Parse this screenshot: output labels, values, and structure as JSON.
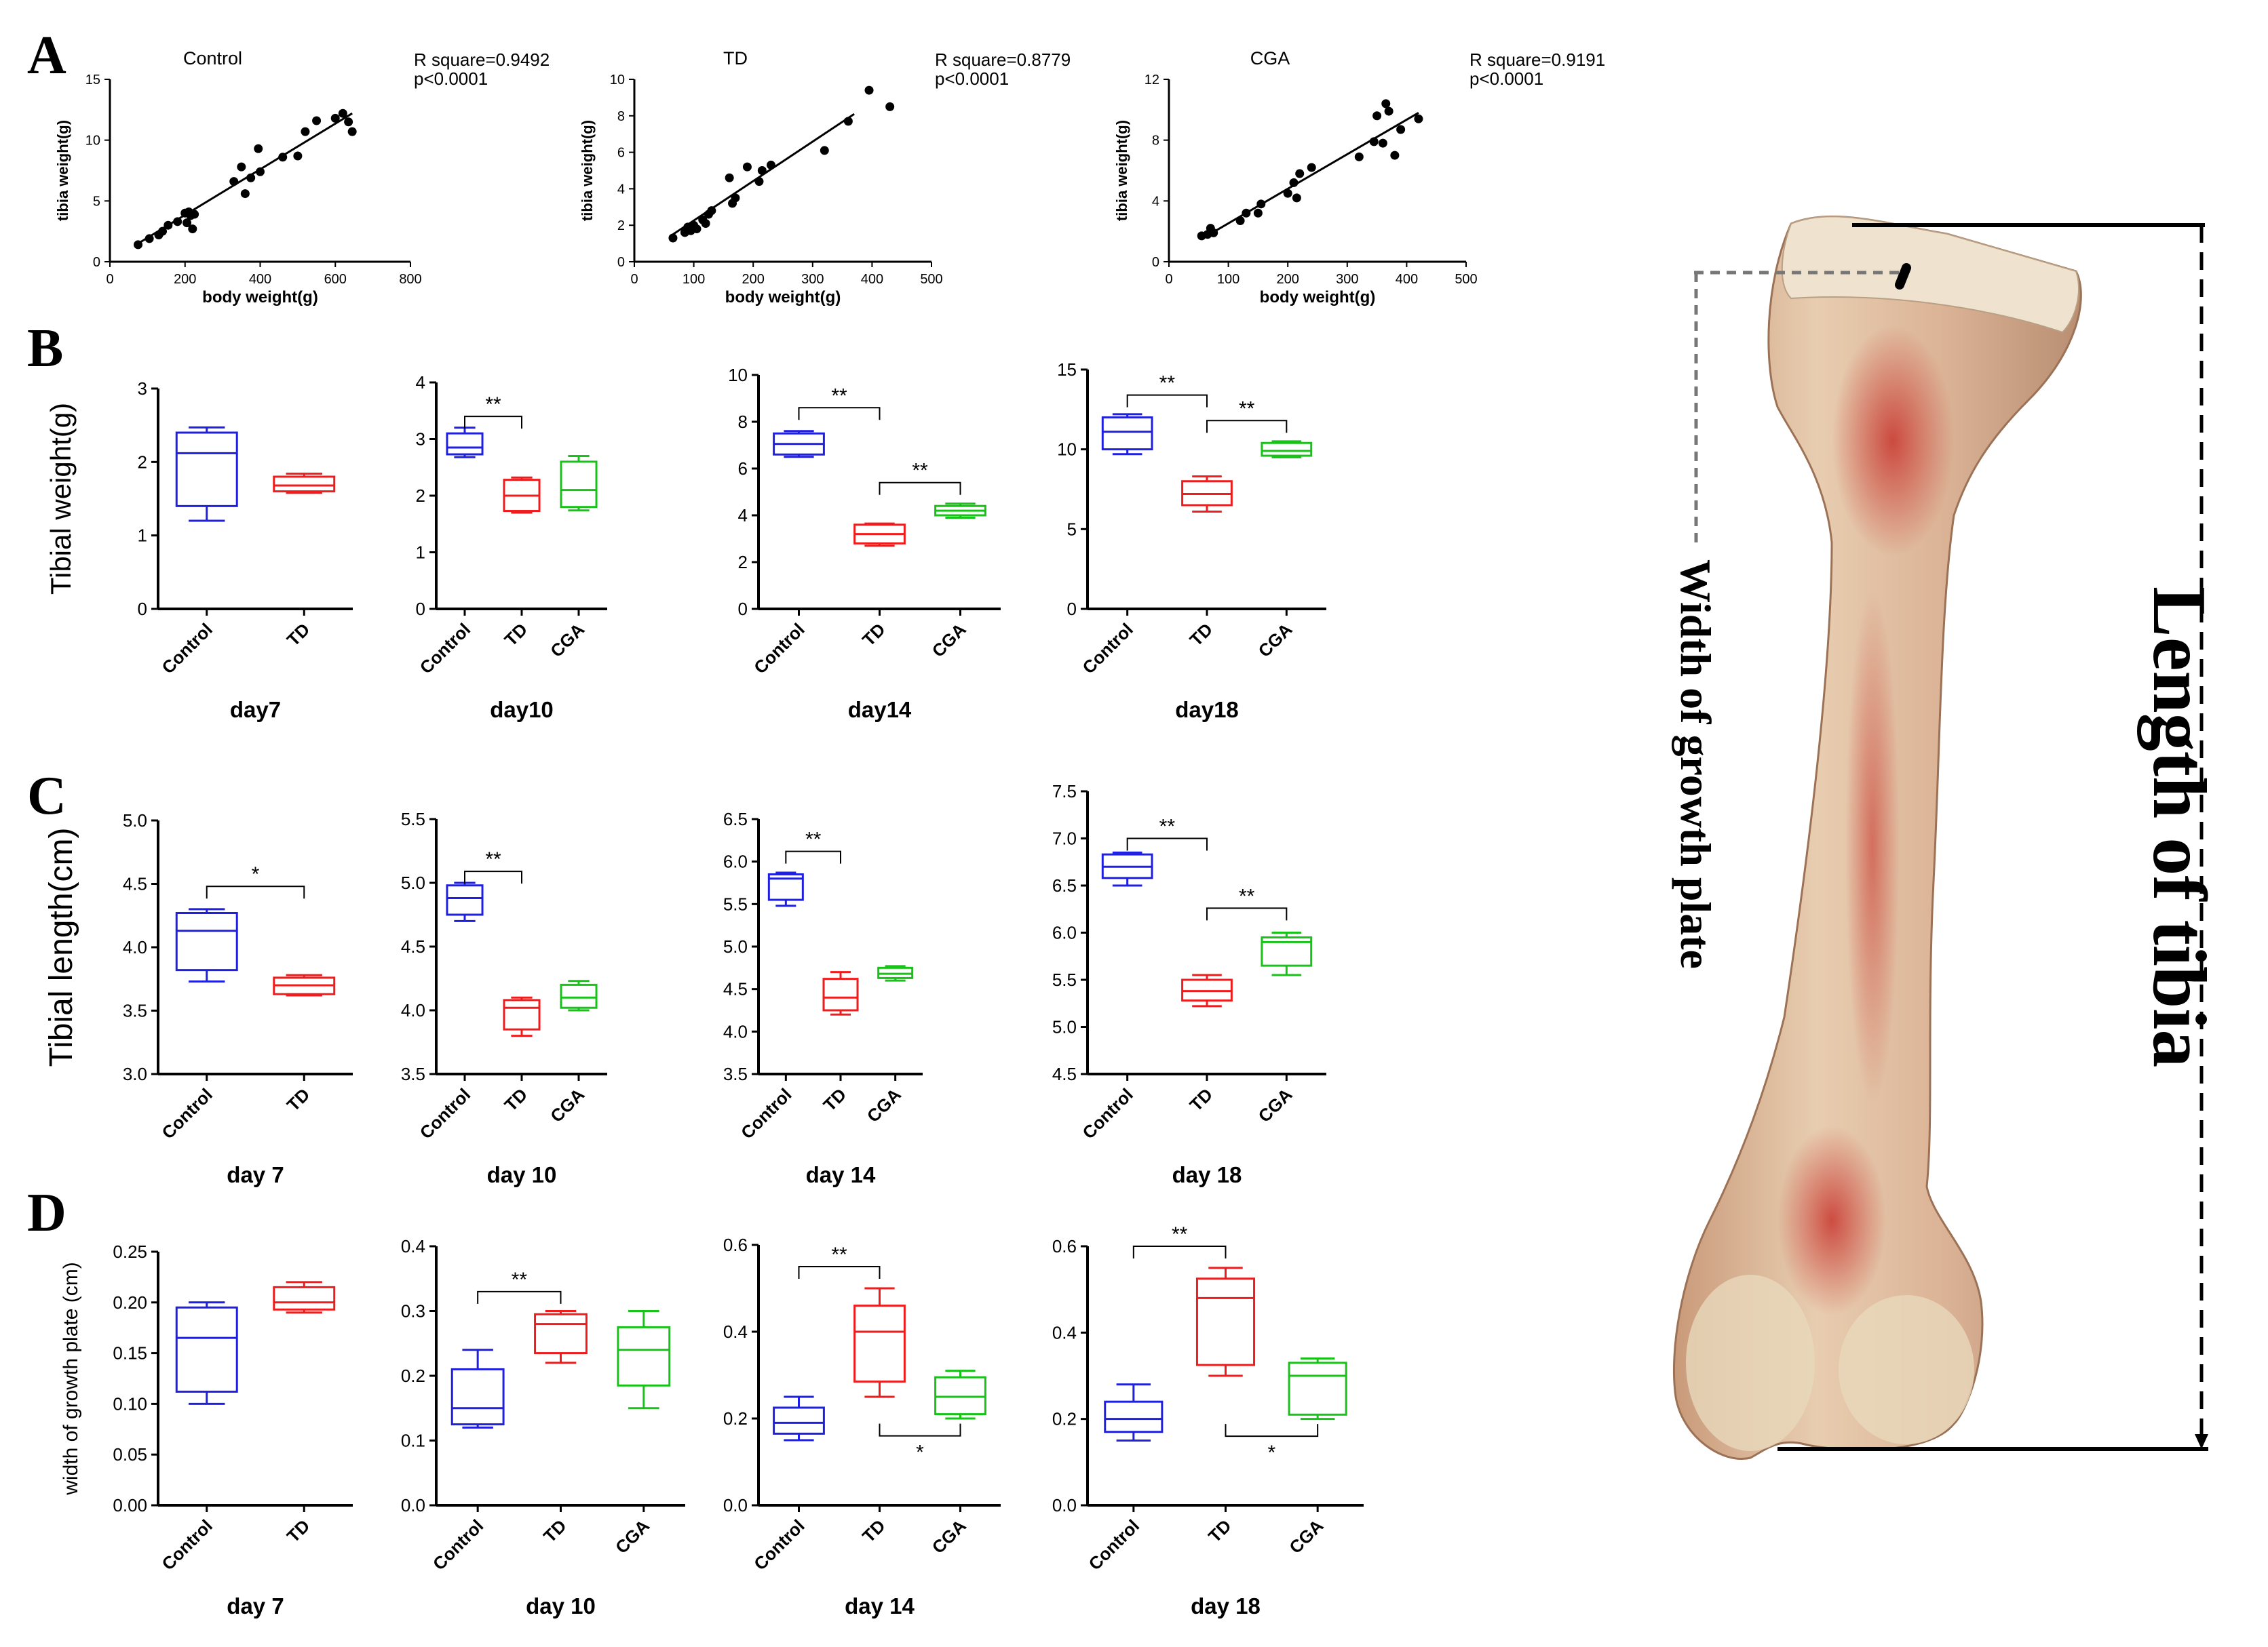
{
  "figure": {
    "panels": {
      "A": "A",
      "B": "B",
      "C": "C",
      "D": "D"
    },
    "colors": {
      "Control": "#1f1fe0",
      "TD": "#ee1c1c",
      "CGA": "#17c317",
      "fit": "#000000",
      "axis": "#000000"
    }
  },
  "bone_image": {
    "length_label": "Length of tibia",
    "width_label": "Width of growth plate"
  },
  "chart_data": [
    {
      "id": "A1",
      "type": "scatter",
      "title": "Control",
      "xlabel": "body weight(g)",
      "ylabel": "tibia weight(g)",
      "xlim": [
        0,
        800
      ],
      "ylim": [
        0,
        15
      ],
      "xticks": [
        0,
        200,
        400,
        600,
        800
      ],
      "yticks": [
        0,
        5,
        10,
        15
      ],
      "stats": [
        "R square=0.9492",
        "p<0.0001"
      ],
      "points": [
        [
          75,
          1.4
        ],
        [
          105,
          1.9
        ],
        [
          130,
          2.2
        ],
        [
          140,
          2.5
        ],
        [
          155,
          3.0
        ],
        [
          180,
          3.3
        ],
        [
          200,
          4.0
        ],
        [
          205,
          3.2
        ],
        [
          210,
          4.1
        ],
        [
          215,
          3.8
        ],
        [
          220,
          2.7
        ],
        [
          225,
          3.9
        ],
        [
          330,
          6.6
        ],
        [
          350,
          7.8
        ],
        [
          360,
          5.6
        ],
        [
          375,
          6.9
        ],
        [
          395,
          9.3
        ],
        [
          400,
          7.4
        ],
        [
          460,
          8.6
        ],
        [
          500,
          8.7
        ],
        [
          520,
          10.7
        ],
        [
          550,
          11.6
        ],
        [
          600,
          11.8
        ],
        [
          620,
          12.2
        ],
        [
          635,
          11.5
        ],
        [
          645,
          10.7
        ]
      ],
      "fit": [
        [
          75,
          1.5
        ],
        [
          645,
          12.2
        ]
      ]
    },
    {
      "id": "A2",
      "type": "scatter",
      "title": "TD",
      "xlabel": "body weight(g)",
      "ylabel": "tibia weight(g)",
      "xlim": [
        0,
        500
      ],
      "ylim": [
        0,
        10
      ],
      "xticks": [
        0,
        100,
        200,
        300,
        400,
        500
      ],
      "yticks": [
        0,
        2,
        4,
        6,
        8,
        10
      ],
      "stats": [
        "R square=0.8779",
        "p<0.0001"
      ],
      "points": [
        [
          65,
          1.3
        ],
        [
          85,
          1.6
        ],
        [
          90,
          1.9
        ],
        [
          95,
          1.7
        ],
        [
          100,
          2.0
        ],
        [
          105,
          1.8
        ],
        [
          115,
          2.3
        ],
        [
          120,
          2.1
        ],
        [
          125,
          2.6
        ],
        [
          130,
          2.8
        ],
        [
          160,
          4.6
        ],
        [
          165,
          3.2
        ],
        [
          170,
          3.5
        ],
        [
          190,
          5.2
        ],
        [
          210,
          4.4
        ],
        [
          215,
          5.0
        ],
        [
          230,
          5.3
        ],
        [
          320,
          6.1
        ],
        [
          360,
          7.7
        ],
        [
          395,
          9.4
        ],
        [
          430,
          8.5
        ]
      ],
      "fit": [
        [
          65,
          1.5
        ],
        [
          370,
          8.1
        ]
      ]
    },
    {
      "id": "A3",
      "type": "scatter",
      "title": "CGA",
      "xlabel": "body weight(g)",
      "ylabel": "tibia weight(g)",
      "xlim": [
        0,
        500
      ],
      "ylim": [
        0,
        12
      ],
      "xticks": [
        0,
        100,
        200,
        300,
        400,
        500
      ],
      "yticks": [
        0,
        4,
        8,
        12
      ],
      "stats": [
        "R square=0.9191",
        "p<0.0001"
      ],
      "points": [
        [
          55,
          1.7
        ],
        [
          65,
          1.8
        ],
        [
          70,
          2.2
        ],
        [
          75,
          1.9
        ],
        [
          120,
          2.7
        ],
        [
          130,
          3.2
        ],
        [
          150,
          3.2
        ],
        [
          155,
          3.8
        ],
        [
          200,
          4.5
        ],
        [
          210,
          5.2
        ],
        [
          215,
          4.2
        ],
        [
          220,
          5.8
        ],
        [
          240,
          6.2
        ],
        [
          320,
          6.9
        ],
        [
          345,
          7.9
        ],
        [
          350,
          9.6
        ],
        [
          360,
          7.8
        ],
        [
          365,
          10.4
        ],
        [
          370,
          9.9
        ],
        [
          380,
          7.0
        ],
        [
          390,
          8.7
        ],
        [
          420,
          9.4
        ]
      ],
      "fit": [
        [
          55,
          1.5
        ],
        [
          420,
          9.8
        ]
      ]
    },
    {
      "id": "B-day7",
      "type": "box",
      "ylabel": "Tibial weight(g)",
      "xlabel": "day7",
      "ylim": [
        0,
        3
      ],
      "yticks": [
        "0",
        "1",
        "2",
        "3"
      ],
      "categories": [
        "Control",
        "TD"
      ],
      "boxes": [
        {
          "group": "Control",
          "min": 1.2,
          "q1": 1.4,
          "median": 2.12,
          "q3": 2.4,
          "max": 2.47
        },
        {
          "group": "TD",
          "min": 1.58,
          "q1": 1.6,
          "median": 1.68,
          "q3": 1.8,
          "max": 1.84
        }
      ],
      "sig": []
    },
    {
      "id": "B-day10",
      "type": "box",
      "xlabel": "day10",
      "ylim": [
        0,
        4
      ],
      "yticks": [
        "0",
        "1",
        "2",
        "3",
        "4"
      ],
      "categories": [
        "Control",
        "TD",
        "CGA"
      ],
      "boxes": [
        {
          "group": "Control",
          "min": 2.68,
          "q1": 2.73,
          "median": 2.85,
          "q3": 3.1,
          "max": 3.2
        },
        {
          "group": "TD",
          "min": 1.7,
          "q1": 1.73,
          "median": 2.0,
          "q3": 2.28,
          "max": 2.32
        },
        {
          "group": "CGA",
          "min": 1.74,
          "q1": 1.8,
          "median": 2.1,
          "q3": 2.6,
          "max": 2.7
        }
      ],
      "sig": [
        {
          "from": 0,
          "to": 1,
          "label": "**",
          "y": 3.4,
          "side": "above"
        }
      ]
    },
    {
      "id": "B-day14",
      "type": "box",
      "xlabel": "day14",
      "ylim": [
        0,
        10
      ],
      "yticks": [
        "0",
        "2",
        "4",
        "6",
        "8",
        "10"
      ],
      "categories": [
        "Control",
        "TD",
        "CGA"
      ],
      "boxes": [
        {
          "group": "Control",
          "min": 6.5,
          "q1": 6.6,
          "median": 7.05,
          "q3": 7.5,
          "max": 7.6
        },
        {
          "group": "TD",
          "min": 2.7,
          "q1": 2.8,
          "median": 3.2,
          "q3": 3.6,
          "max": 3.65
        },
        {
          "group": "CGA",
          "min": 3.9,
          "q1": 4.0,
          "median": 4.2,
          "q3": 4.4,
          "max": 4.5
        }
      ],
      "sig": [
        {
          "from": 0,
          "to": 1,
          "label": "**",
          "y": 8.6,
          "side": "above"
        },
        {
          "from": 1,
          "to": 2,
          "label": "**",
          "y": 5.4,
          "side": "above"
        }
      ]
    },
    {
      "id": "B-day18",
      "type": "box",
      "xlabel": "day18",
      "ylim": [
        0,
        15
      ],
      "yticks": [
        "0",
        "5",
        "10",
        "15"
      ],
      "categories": [
        "Control",
        "TD",
        "CGA"
      ],
      "boxes": [
        {
          "group": "Control",
          "min": 9.7,
          "q1": 10.0,
          "median": 11.1,
          "q3": 12.0,
          "max": 12.2
        },
        {
          "group": "TD",
          "min": 6.1,
          "q1": 6.5,
          "median": 7.2,
          "q3": 8.0,
          "max": 8.3
        },
        {
          "group": "CGA",
          "min": 9.5,
          "q1": 9.6,
          "median": 9.9,
          "q3": 10.4,
          "max": 10.5
        }
      ],
      "sig": [
        {
          "from": 0,
          "to": 1,
          "label": "**",
          "y": 13.4,
          "side": "above"
        },
        {
          "from": 1,
          "to": 2,
          "label": "**",
          "y": 11.8,
          "side": "above"
        }
      ]
    },
    {
      "id": "C-day7",
      "type": "box",
      "ylabel": "Tibial length(cm)",
      "xlabel": "day 7",
      "ylim": [
        3.0,
        5.0
      ],
      "yticks": [
        "3.0",
        "3.5",
        "4.0",
        "4.5",
        "5.0"
      ],
      "categories": [
        "Control",
        "TD"
      ],
      "boxes": [
        {
          "group": "Control",
          "min": 3.73,
          "q1": 3.82,
          "median": 4.13,
          "q3": 4.27,
          "max": 4.3
        },
        {
          "group": "TD",
          "min": 3.62,
          "q1": 3.63,
          "median": 3.7,
          "q3": 3.76,
          "max": 3.78
        }
      ],
      "sig": [
        {
          "from": 0,
          "to": 1,
          "label": "*",
          "y": 4.48,
          "side": "above"
        }
      ]
    },
    {
      "id": "C-day10",
      "type": "box",
      "xlabel": "day 10",
      "ylim": [
        3.5,
        5.5
      ],
      "yticks": [
        "3.5",
        "4.0",
        "4.5",
        "5.0",
        "5.5"
      ],
      "categories": [
        "Control",
        "TD",
        "CGA"
      ],
      "boxes": [
        {
          "group": "Control",
          "min": 4.7,
          "q1": 4.75,
          "median": 4.88,
          "q3": 4.98,
          "max": 5.0
        },
        {
          "group": "TD",
          "min": 3.8,
          "q1": 3.85,
          "median": 4.02,
          "q3": 4.08,
          "max": 4.1
        },
        {
          "group": "CGA",
          "min": 4.0,
          "q1": 4.02,
          "median": 4.1,
          "q3": 4.2,
          "max": 4.23
        }
      ],
      "sig": [
        {
          "from": 0,
          "to": 1,
          "label": "**",
          "y": 5.09,
          "side": "above"
        }
      ]
    },
    {
      "id": "C-day14",
      "type": "box",
      "xlabel": "day 14",
      "ylim": [
        3.5,
        6.5
      ],
      "yticks": [
        "3.5",
        "4.0",
        "4.5",
        "5.0",
        "5.5",
        "6.0",
        "6.5"
      ],
      "categories": [
        "Control",
        "TD",
        "CGA"
      ],
      "boxes": [
        {
          "group": "Control",
          "min": 5.48,
          "q1": 5.55,
          "median": 5.8,
          "q3": 5.85,
          "max": 5.87
        },
        {
          "group": "TD",
          "min": 4.2,
          "q1": 4.25,
          "median": 4.4,
          "q3": 4.62,
          "max": 4.7
        },
        {
          "group": "CGA",
          "min": 4.6,
          "q1": 4.63,
          "median": 4.68,
          "q3": 4.75,
          "max": 4.77
        }
      ],
      "sig": [
        {
          "from": 0,
          "to": 1,
          "label": "**",
          "y": 6.12,
          "side": "above"
        }
      ]
    },
    {
      "id": "C-day18",
      "type": "box",
      "xlabel": "day 18",
      "ylim": [
        4.5,
        7.5
      ],
      "yticks": [
        "4.5",
        "5.0",
        "5.5",
        "6.0",
        "6.5",
        "7.0",
        "7.5"
      ],
      "categories": [
        "Control",
        "TD",
        "CGA"
      ],
      "boxes": [
        {
          "group": "Control",
          "min": 6.5,
          "q1": 6.58,
          "median": 6.7,
          "q3": 6.83,
          "max": 6.85
        },
        {
          "group": "TD",
          "min": 5.22,
          "q1": 5.28,
          "median": 5.38,
          "q3": 5.5,
          "max": 5.55
        },
        {
          "group": "CGA",
          "min": 5.55,
          "q1": 5.65,
          "median": 5.9,
          "q3": 5.95,
          "max": 6.0
        }
      ],
      "sig": [
        {
          "from": 0,
          "to": 1,
          "label": "**",
          "y": 7.0,
          "side": "above"
        },
        {
          "from": 1,
          "to": 2,
          "label": "**",
          "y": 6.26,
          "side": "above"
        }
      ]
    },
    {
      "id": "D-day7",
      "type": "box",
      "ylabel": "width of growth plate (cm)",
      "xlabel": "day 7",
      "ylim": [
        0,
        0.25
      ],
      "yticks": [
        "0.00",
        "0.05",
        "0.10",
        "0.15",
        "0.20",
        "0.25"
      ],
      "categories": [
        "Control",
        "TD"
      ],
      "boxes": [
        {
          "group": "Control",
          "min": 0.1,
          "q1": 0.112,
          "median": 0.165,
          "q3": 0.195,
          "max": 0.2
        },
        {
          "group": "TD",
          "min": 0.19,
          "q1": 0.193,
          "median": 0.2,
          "q3": 0.215,
          "max": 0.22
        }
      ],
      "sig": []
    },
    {
      "id": "D-day10",
      "type": "box",
      "xlabel": "day 10",
      "ylim": [
        0,
        0.4
      ],
      "yticks": [
        "0.0",
        "0.1",
        "0.2",
        "0.3",
        "0.4"
      ],
      "categories": [
        "Control",
        "TD",
        "CGA"
      ],
      "boxes": [
        {
          "group": "Control",
          "min": 0.12,
          "q1": 0.125,
          "median": 0.15,
          "q3": 0.21,
          "max": 0.24
        },
        {
          "group": "TD",
          "min": 0.22,
          "q1": 0.235,
          "median": 0.28,
          "q3": 0.295,
          "max": 0.3
        },
        {
          "group": "CGA",
          "min": 0.15,
          "q1": 0.185,
          "median": 0.24,
          "q3": 0.275,
          "max": 0.3
        }
      ],
      "sig": [
        {
          "from": 0,
          "to": 1,
          "label": "**",
          "y": 0.33,
          "side": "above"
        }
      ]
    },
    {
      "id": "D-day14",
      "type": "box",
      "xlabel": "day 14",
      "ylim": [
        0,
        0.6
      ],
      "yticks": [
        "0.0",
        "0.2",
        "0.4",
        "0.6"
      ],
      "categories": [
        "Control",
        "TD",
        "CGA"
      ],
      "boxes": [
        {
          "group": "Control",
          "min": 0.15,
          "q1": 0.165,
          "median": 0.19,
          "q3": 0.225,
          "max": 0.25
        },
        {
          "group": "TD",
          "min": 0.25,
          "q1": 0.285,
          "median": 0.4,
          "q3": 0.46,
          "max": 0.5
        },
        {
          "group": "CGA",
          "min": 0.2,
          "q1": 0.21,
          "median": 0.25,
          "q3": 0.295,
          "max": 0.31
        }
      ],
      "sig": [
        {
          "from": 0,
          "to": 1,
          "label": "**",
          "y": 0.55,
          "side": "above"
        },
        {
          "from": 1,
          "to": 2,
          "label": "*",
          "y": 0.16,
          "side": "below"
        }
      ]
    },
    {
      "id": "D-day18",
      "type": "box",
      "xlabel": "day 18",
      "ylim": [
        0,
        0.6
      ],
      "yticks": [
        "0.0",
        "0.2",
        "0.4",
        "0.6"
      ],
      "categories": [
        "Control",
        "TD",
        "CGA"
      ],
      "boxes": [
        {
          "group": "Control",
          "min": 0.15,
          "q1": 0.17,
          "median": 0.2,
          "q3": 0.24,
          "max": 0.28
        },
        {
          "group": "TD",
          "min": 0.3,
          "q1": 0.325,
          "median": 0.48,
          "q3": 0.525,
          "max": 0.55
        },
        {
          "group": "CGA",
          "min": 0.2,
          "q1": 0.21,
          "median": 0.3,
          "q3": 0.33,
          "max": 0.34
        }
      ],
      "sig": [
        {
          "from": 0,
          "to": 1,
          "label": "**",
          "y": 0.6,
          "side": "above"
        },
        {
          "from": 1,
          "to": 2,
          "label": "*",
          "y": 0.16,
          "side": "below"
        }
      ]
    }
  ]
}
